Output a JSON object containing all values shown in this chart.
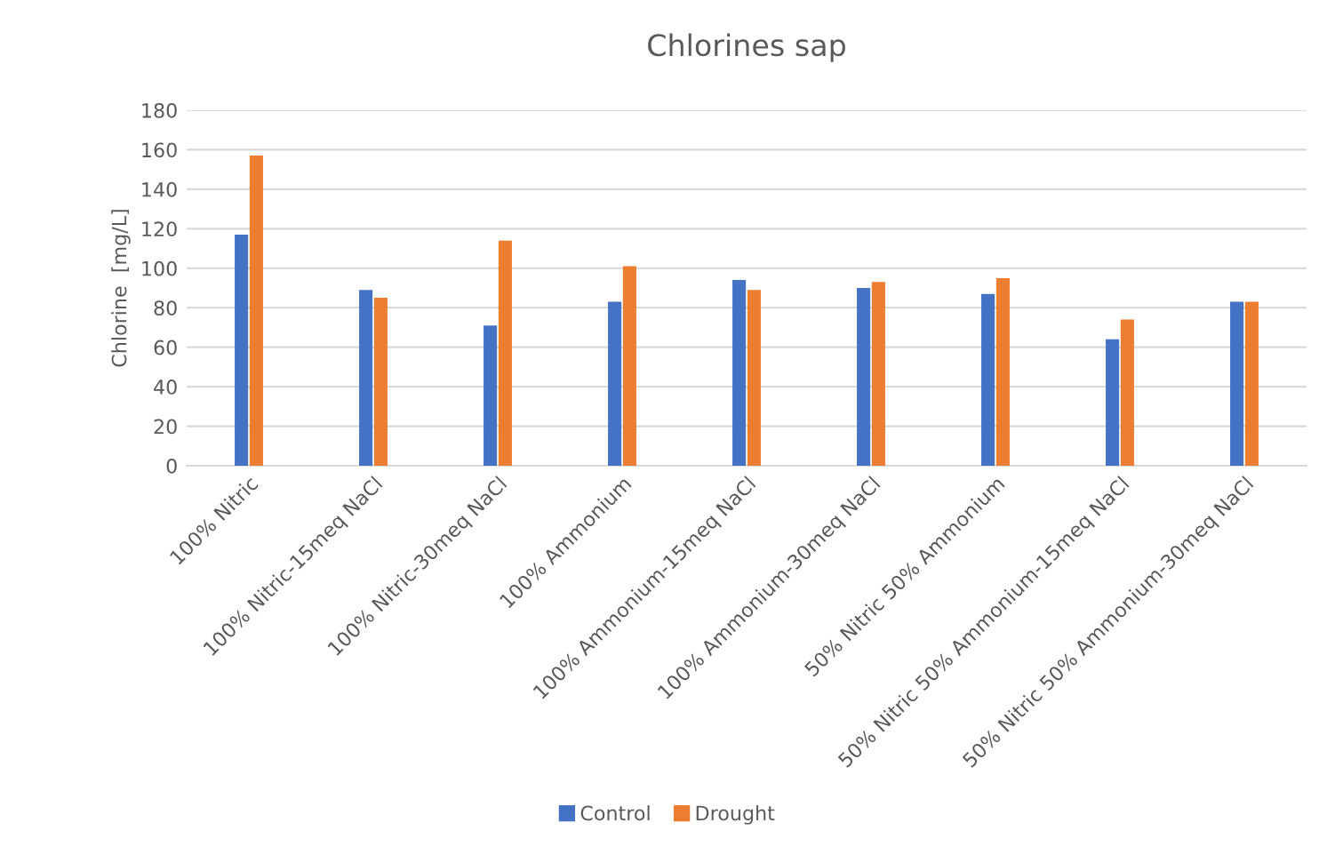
{
  "chart_data": {
    "type": "bar",
    "title": "Chlorines sap",
    "ylabel": "Chlorine  [mg/L]",
    "categories": [
      "100% Nitric",
      "100% Nitric-15meq NaCl",
      "100% Nitric-30meq NaCl",
      "100% Ammonium",
      "100% Ammonium-15meq NaCl",
      "100% Ammonium-30meq NaCl",
      "50% Nitric 50% Ammonium",
      "50% Nitric 50% Ammonium-15meq NaCl",
      "50% Nitric 50% Ammonium-30meq NaCl"
    ],
    "series": [
      {
        "name": "Control",
        "color": "#4472c4",
        "values": [
          117,
          89,
          71,
          83,
          94,
          90,
          87,
          64,
          83
        ]
      },
      {
        "name": "Drought",
        "color": "#ed7d31",
        "values": [
          157,
          85,
          114,
          101,
          89,
          93,
          95,
          74,
          83
        ]
      }
    ],
    "ylim": [
      0,
      180
    ],
    "yticks": [
      0,
      20,
      40,
      60,
      80,
      100,
      120,
      140,
      160,
      180
    ],
    "grid": "y",
    "legend": "bottom"
  }
}
